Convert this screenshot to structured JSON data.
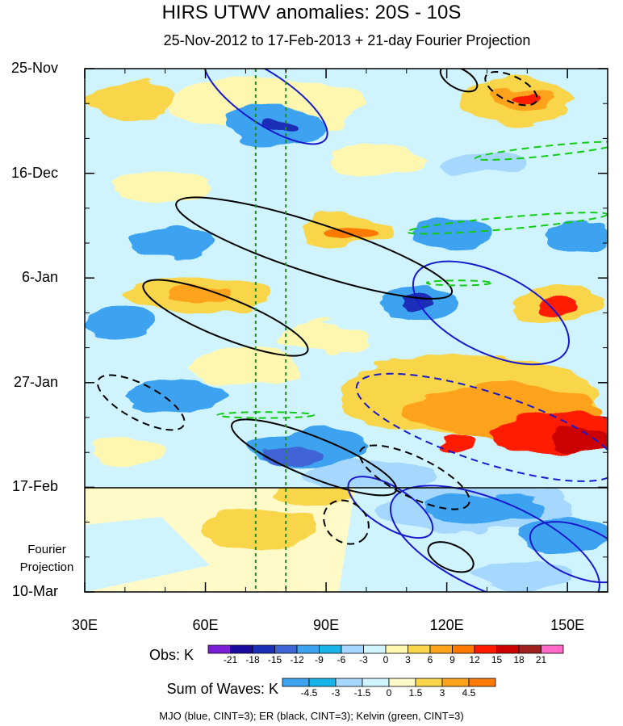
{
  "chart_data": {
    "type": "heatmap",
    "title": "HIRS UTWV anomalies: 20S - 10S",
    "subtitle": "25-Nov-2012 to 17-Feb-2013 + 21-day Fourier Projection",
    "y_axis": {
      "ticks": [
        "25-Nov",
        "16-Dec",
        "6-Jan",
        "27-Jan",
        "17-Feb",
        "10-Mar"
      ],
      "tick_days": [
        0,
        21,
        42,
        63,
        84,
        105
      ],
      "range_days": [
        0,
        105
      ],
      "projection_label_line1": "Fourier",
      "projection_label_line2": "Projection",
      "projection_start_day": 84
    },
    "x_axis": {
      "ticks": [
        "30E",
        "60E",
        "90E",
        "120E",
        "150E"
      ],
      "tick_values": [
        30,
        60,
        90,
        120,
        150
      ],
      "range": [
        30,
        160
      ]
    },
    "reference_lines_lon": [
      72.5,
      80
    ],
    "colorbar_obs": {
      "label": "Obs: K",
      "levels": [
        "-21",
        "-18",
        "-15",
        "-12",
        "-9",
        "-6",
        "-3",
        "0",
        "3",
        "6",
        "9",
        "12",
        "15",
        "18",
        "21"
      ],
      "colors": [
        "#7a1fd6",
        "#1a0a9e",
        "#1c2fb8",
        "#3f64d6",
        "#3da3f0",
        "#17b4ea",
        "#a6d8ff",
        "#cff4ff",
        "#fff7b0",
        "#f8d54a",
        "#ffa31a",
        "#ff7a00",
        "#ff1a00",
        "#cc0000",
        "#a02020",
        "#ff69c8"
      ]
    },
    "colorbar_waves": {
      "label": "Sum of Waves: K",
      "levels": [
        "-4.5",
        "-3",
        "-1.5",
        "0",
        "1.5",
        "3",
        "4.5"
      ],
      "colors": [
        "#3da3f0",
        "#17b4ea",
        "#a6d8ff",
        "#cff4ff",
        "#fffac8",
        "#f8d54a",
        "#ffa31a",
        "#ff7a00"
      ]
    },
    "contours": [
      {
        "wave": "MJO",
        "color": "#1a1acd",
        "sign": "neg",
        "lon": 75,
        "day": 6,
        "a_lon": 18,
        "a_day": 5,
        "angle": 34
      },
      {
        "wave": "MJO",
        "color": "#1a1acd",
        "sign": "neg",
        "lon": 131,
        "day": 49,
        "a_lon": 21,
        "a_day": 8,
        "angle": 26
      },
      {
        "wave": "MJO",
        "color": "#1a1acd",
        "sign": "pos",
        "lon": 130,
        "day": 72,
        "a_lon": 34,
        "a_day": 7,
        "angle": 18
      },
      {
        "wave": "MJO",
        "color": "#1a1acd",
        "sign": "neg",
        "lon": 106,
        "day": 88,
        "a_lon": 12,
        "a_day": 4,
        "angle": 32
      },
      {
        "wave": "MJO",
        "color": "#1a1acd",
        "sign": "neg",
        "lon": 132,
        "day": 96,
        "a_lon": 28,
        "a_day": 9,
        "angle": 24
      },
      {
        "wave": "MJO",
        "color": "#1a1acd",
        "sign": "neg",
        "lon": 153,
        "day": 97,
        "a_lon": 13,
        "a_day": 5,
        "angle": 22
      },
      {
        "wave": "ER",
        "color": "#000000",
        "sign": "neg",
        "lon": 65,
        "day": 50,
        "a_lon": 22,
        "a_day": 4,
        "angle": 22
      },
      {
        "wave": "ER",
        "color": "#000000",
        "sign": "neg",
        "lon": 87,
        "day": 36,
        "a_lon": 36,
        "a_day": 5,
        "angle": 18
      },
      {
        "wave": "ER",
        "color": "#000000",
        "sign": "pos",
        "lon": 44,
        "day": 67,
        "a_lon": 12,
        "a_day": 3.5,
        "angle": 28
      },
      {
        "wave": "ER",
        "color": "#000000",
        "sign": "neg",
        "lon": 87,
        "day": 78,
        "a_lon": 22,
        "a_day": 4,
        "angle": 22
      },
      {
        "wave": "ER",
        "color": "#000000",
        "sign": "pos",
        "lon": 112,
        "day": 82,
        "a_lon": 15,
        "a_day": 4,
        "angle": 26
      },
      {
        "wave": "ER",
        "color": "#000000",
        "sign": "pos",
        "lon": 95,
        "day": 91,
        "a_lon": 6,
        "a_day": 4,
        "angle": 40
      },
      {
        "wave": "ER",
        "color": "#000000",
        "sign": "neg",
        "lon": 121,
        "day": 98,
        "a_lon": 6,
        "a_day": 2.5,
        "angle": 24
      },
      {
        "wave": "ER",
        "color": "#000000",
        "sign": "pos",
        "lon": 136,
        "day": 4,
        "a_lon": 7,
        "a_day": 2.5,
        "angle": 26
      },
      {
        "wave": "ER",
        "color": "#000000",
        "sign": "neg",
        "lon": 123,
        "day": 2,
        "a_lon": 5,
        "a_day": 2,
        "angle": 28
      },
      {
        "wave": "Kelvin",
        "color": "#11cc11",
        "sign": "pos",
        "lon": 145,
        "day": 16.5,
        "a_lon": 18,
        "a_day": 1,
        "angle": -6
      },
      {
        "wave": "Kelvin",
        "color": "#11cc11",
        "sign": "pos",
        "lon": 135,
        "day": 31,
        "a_lon": 25,
        "a_day": 1.2,
        "angle": -5
      },
      {
        "wave": "Kelvin",
        "color": "#11cc11",
        "sign": "pos",
        "lon": 75,
        "day": 69.5,
        "a_lon": 12,
        "a_day": 0.6,
        "angle": 0
      },
      {
        "wave": "Kelvin",
        "color": "#11cc11",
        "sign": "pos",
        "lon": 123,
        "day": 43,
        "a_lon": 8,
        "a_day": 0.5,
        "angle": 0
      }
    ],
    "footnote": "MJO (blue, CINT=3); ER (black, CINT=3); Kelvin (green, CINT=3)"
  }
}
